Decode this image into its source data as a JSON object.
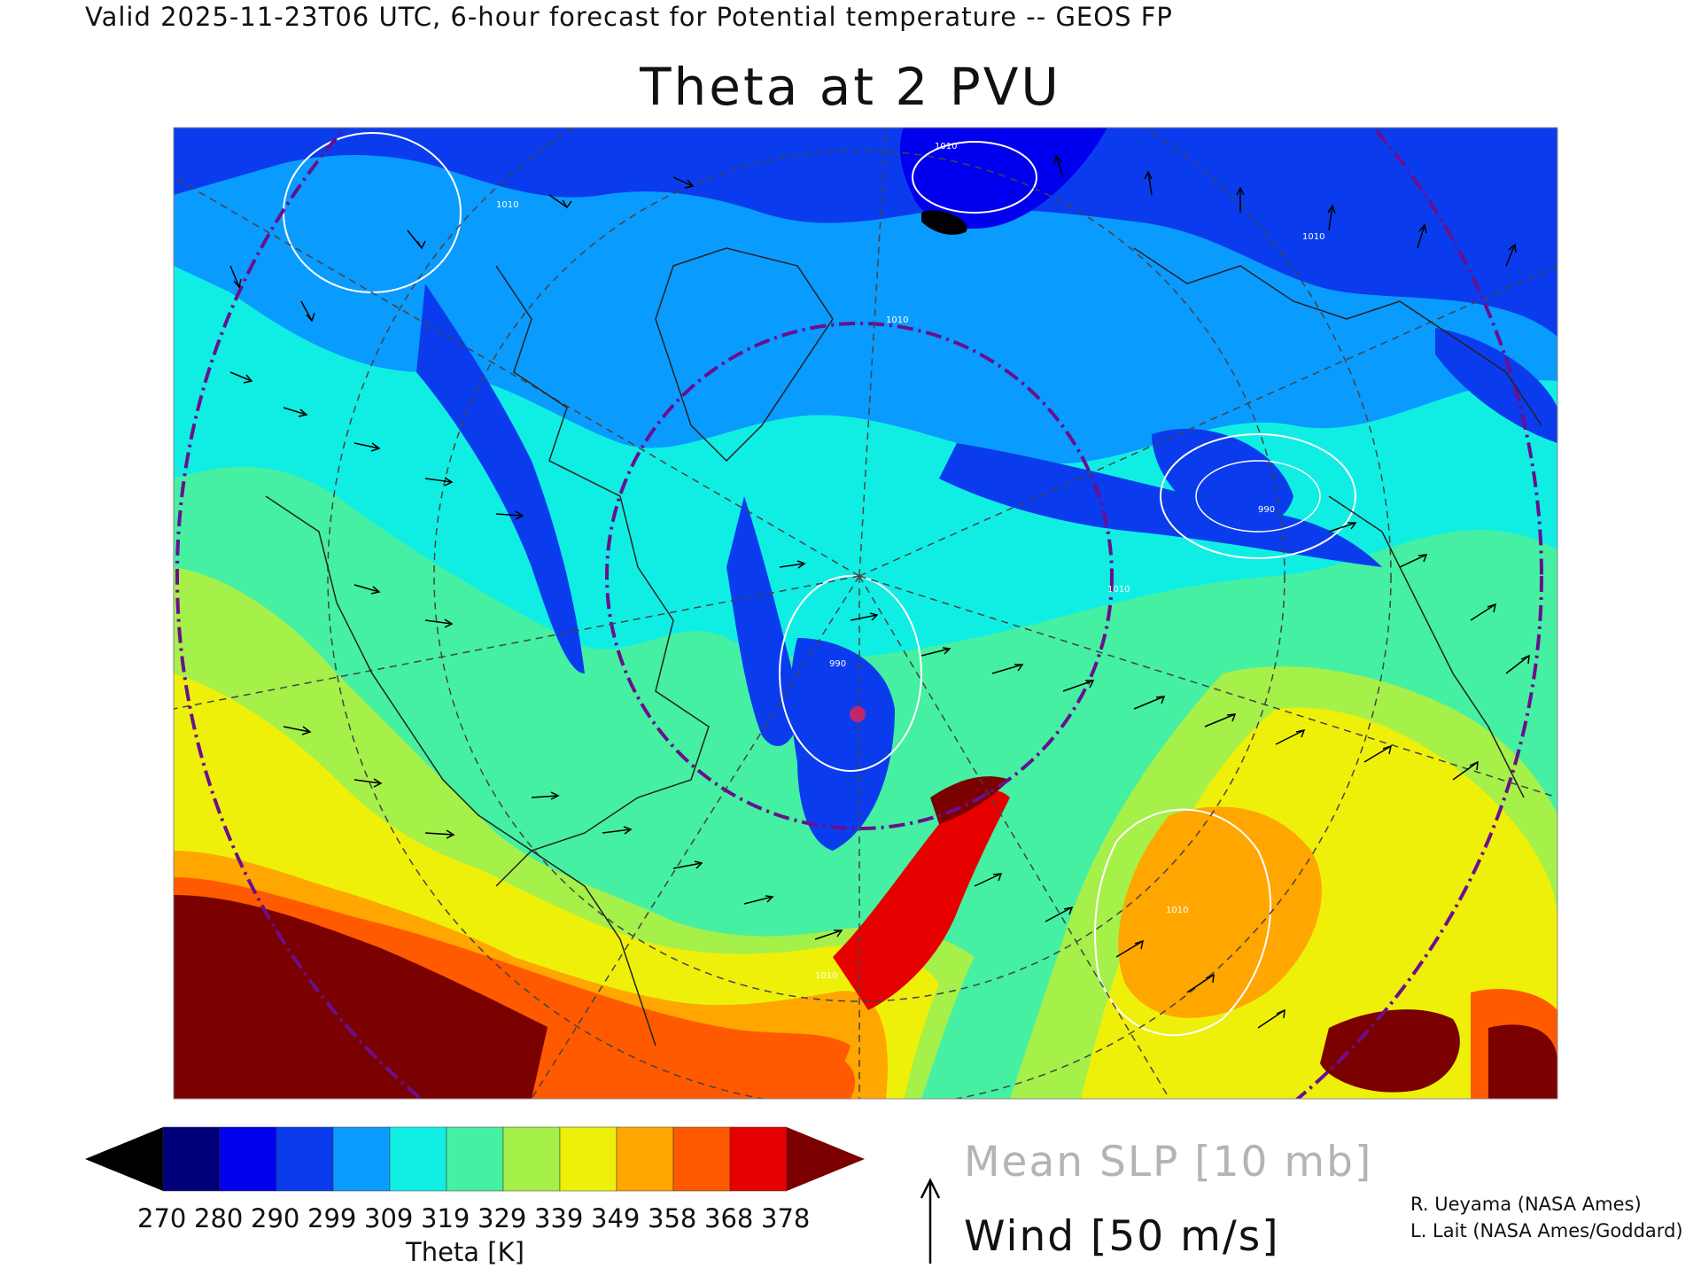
{
  "header": {
    "subtitle": "Valid 2025-11-23T06 UTC, 6-hour forecast for Potential temperature -- GEOS FP",
    "title": "Theta at 2 PVU"
  },
  "colorbar": {
    "label": "Theta [K]",
    "ticks": [
      "270",
      "280",
      "290",
      "299",
      "309",
      "319",
      "329",
      "339",
      "349",
      "358",
      "368",
      "378"
    ],
    "below_min_color": "#000000",
    "above_max_color": "#7b0000",
    "colors": [
      "#00007a",
      "#0000ee",
      "#0a3cee",
      "#0a9bff",
      "#10eee4",
      "#45f0a2",
      "#a6f04a",
      "#eef00a",
      "#ffa600",
      "#ff5a00",
      "#e60000"
    ]
  },
  "legend": {
    "slp_label": "Mean SLP [10 mb]",
    "wind_label": "Wind [50 m/s]"
  },
  "map": {
    "projection": "polar stereographic, North Atlantic / Arctic sector",
    "contour_labels": [
      "1010",
      "1010",
      "1010",
      "1010",
      "1010",
      "1010",
      "990",
      "990",
      "1010"
    ],
    "overlays": [
      "mean SLP contours (white)",
      "wind vectors (black)",
      "coastlines",
      "lat/lon grid (dashed)",
      "purple dash-dot circles"
    ]
  },
  "credits": {
    "line1": "R. Ueyama (NASA Ames)",
    "line2": "L. Lait (NASA Ames/Goddard)"
  }
}
